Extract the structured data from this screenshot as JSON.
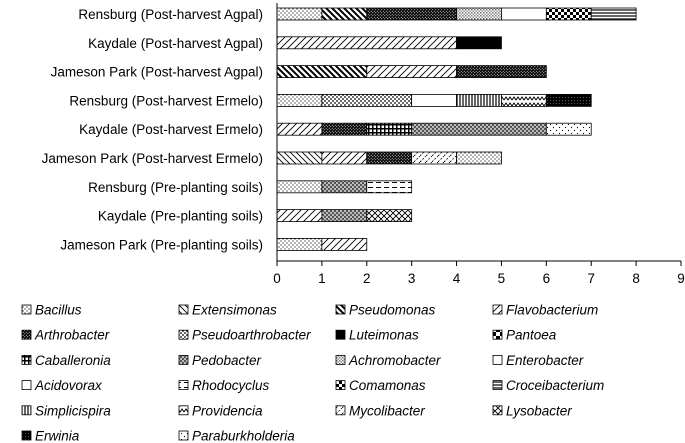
{
  "chart_data": {
    "type": "bar",
    "orientation": "horizontal",
    "stacked": true,
    "categories": [
      "Rensburg (Post-harvest Agpal)",
      "Kaydale (Post-harvest Agpal)",
      "Jameson Park (Post-harvest Agpal)",
      "Rensburg (Post-harvest Ermelo)",
      "Kaydale (Post-harvest Ermelo)",
      "Jameson Park (Post-harvest Ermelo)",
      "Rensburg (Pre-planting soils)",
      "Kaydale (Pre-planting soils)",
      "Jameson Park (Pre-planting soils)"
    ],
    "xlim": [
      0,
      9
    ],
    "xticks": [
      "0",
      "1",
      "2",
      "3",
      "4",
      "5",
      "6",
      "7",
      "8",
      "9"
    ],
    "legend_position": "bottom",
    "bars": [
      [
        {
          "genus": "Bacillus",
          "value": 1
        },
        {
          "genus": "Pseudomonas",
          "value": 1
        },
        {
          "genus": "Arthrobacter",
          "value": 2
        },
        {
          "genus": "Achromobacter",
          "value": 1
        },
        {
          "genus": "Enterobacter",
          "value": 1
        },
        {
          "genus": "Comamonas",
          "value": 1
        },
        {
          "genus": "Croceibacterium",
          "value": 1
        }
      ],
      [
        {
          "genus": "Flavobacterium",
          "value": 4
        },
        {
          "genus": "Luteimonas",
          "value": 1
        }
      ],
      [
        {
          "genus": "Pseudomonas",
          "value": 2
        },
        {
          "genus": "Flavobacterium",
          "value": 2
        },
        {
          "genus": "Arthrobacter",
          "value": 2
        }
      ],
      [
        {
          "genus": "Bacillus",
          "value": 1
        },
        {
          "genus": "Pseudoarthrobacter",
          "value": 2
        },
        {
          "genus": "Acidovorax",
          "value": 1
        },
        {
          "genus": "Simplicispira",
          "value": 1
        },
        {
          "genus": "Providencia",
          "value": 1
        },
        {
          "genus": "Erwinia",
          "value": 1
        }
      ],
      [
        {
          "genus": "Flavobacterium",
          "value": 1
        },
        {
          "genus": "Arthrobacter",
          "value": 1
        },
        {
          "genus": "Caballeronia",
          "value": 1
        },
        {
          "genus": "Pedobacter",
          "value": 3
        },
        {
          "genus": "Paraburkholderia",
          "value": 1
        }
      ],
      [
        {
          "genus": "Extensimonas",
          "value": 1
        },
        {
          "genus": "Flavobacterium",
          "value": 1
        },
        {
          "genus": "Arthrobacter",
          "value": 1
        },
        {
          "genus": "Mycolibacter",
          "value": 1
        },
        {
          "genus": "Bacillus",
          "value": 1
        }
      ],
      [
        {
          "genus": "Bacillus",
          "value": 1
        },
        {
          "genus": "Pedobacter",
          "value": 1
        },
        {
          "genus": "Rhodocyclus",
          "value": 1
        }
      ],
      [
        {
          "genus": "Flavobacterium",
          "value": 1
        },
        {
          "genus": "Pedobacter",
          "value": 1
        },
        {
          "genus": "Lysobacter",
          "value": 1
        }
      ],
      [
        {
          "genus": "Bacillus",
          "value": 1
        },
        {
          "genus": "Flavobacterium",
          "value": 1
        }
      ]
    ],
    "legend": [
      "Bacillus",
      "Extensimonas",
      "Pseudomonas",
      "Flavobacterium",
      "Arthrobacter",
      "Pseudoarthrobacter",
      "Luteimonas",
      "Pantoea",
      "Caballeronia",
      "Pedobacter",
      "Achromobacter",
      "Enterobacter",
      "Acidovorax",
      "Rhodocyclus",
      "Comamonas",
      "Croceibacterium",
      "Simplicispira",
      "Providencia",
      "Mycolibacter",
      "Lysobacter",
      "Erwinia",
      "Paraburkholderia"
    ],
    "patterns": {
      "Bacillus": "dots-fine",
      "Extensimonas": "diag-back-thin",
      "Pseudomonas": "diag-back-thick",
      "Flavobacterium": "diag-fwd-thin",
      "Arthrobacter": "dense-dots-dark",
      "Pseudoarthrobacter": "dots-medium",
      "Luteimonas": "solid-black",
      "Pantoea": "checker-coarse",
      "Caballeronia": "grid-dark",
      "Pedobacter": "checker-fine",
      "Achromobacter": "dots-grey",
      "Enterobacter": "white",
      "Acidovorax": "white",
      "Rhodocyclus": "dashes-horizontal",
      "Comamonas": "checker-large",
      "Croceibacterium": "horizontal-lines",
      "Simplicispira": "vertical-lines",
      "Providencia": "zigzag",
      "Mycolibacter": "diag-fwd-dashed",
      "Lysobacter": "crosshatch-diag",
      "Erwinia": "dense-dots-black",
      "Paraburkholderia": "dots-sparse"
    }
  }
}
